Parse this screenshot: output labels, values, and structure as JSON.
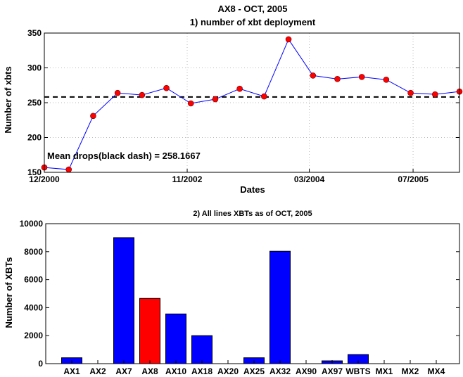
{
  "chart_data": [
    {
      "type": "line",
      "title": "AX8 - OCT, 2005",
      "subtitle": "1) number of xbt deployment",
      "xlabel": "Dates",
      "ylabel": "Number of xbts",
      "ylim": [
        150,
        350
      ],
      "yticks": [
        150,
        200,
        250,
        300,
        350
      ],
      "xtick_labels": [
        "12/2000",
        "11/2002",
        "03/2004",
        "07/2005"
      ],
      "grid": true,
      "mean_line": 258.1667,
      "annotation": "Mean drops(black dash) = 258.1667",
      "series": [
        {
          "values": [
            157,
            154,
            231,
            264,
            261,
            271,
            249,
            255,
            270,
            259,
            341,
            289,
            284,
            287,
            283,
            264,
            262,
            266
          ],
          "line_color": "#0000ff",
          "marker_color": "#ff0000"
        }
      ]
    },
    {
      "type": "bar",
      "title": "2) All lines XBTs as of OCT, 2005",
      "ylabel": "Number of XBTs",
      "ylim": [
        0,
        10000
      ],
      "yticks": [
        0,
        2000,
        4000,
        6000,
        8000,
        10000
      ],
      "categories": [
        "AX1",
        "AX2",
        "AX7",
        "AX8",
        "AX10",
        "AX18",
        "AX20",
        "AX25",
        "AX32",
        "AX90",
        "AX97",
        "WBTS",
        "MX1",
        "MX2",
        "MX4"
      ],
      "values": [
        420,
        0,
        9000,
        4660,
        3550,
        2000,
        0,
        420,
        8030,
        0,
        200,
        650,
        0,
        0,
        0
      ],
      "colors": [
        "#0000ff",
        "#0000ff",
        "#0000ff",
        "#ff0000",
        "#0000ff",
        "#0000ff",
        "#0000ff",
        "#0000ff",
        "#0000ff",
        "#0000ff",
        "#0000ff",
        "#0000ff",
        "#0000ff",
        "#0000ff",
        "#0000ff"
      ]
    }
  ]
}
